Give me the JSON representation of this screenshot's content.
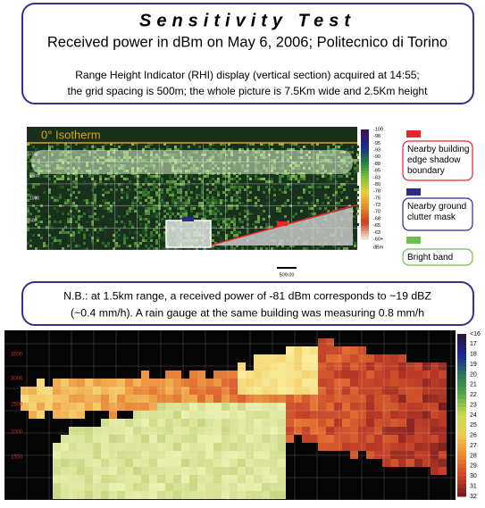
{
  "header": {
    "title": "Sensitivity Test",
    "subtitle": "Received power in dBm on May 6, 2006; Politecnico di Torino",
    "description": [
      "Range Height Indicator (RHI) display (vertical section) acquired at 14:55;",
      "the grid spacing is 500m; the whole picture is 7.5Km wide and 2.5Km height"
    ]
  },
  "rhi": {
    "isotherm": "0° Isotherm",
    "y_labels": [
      "2000",
      "1500",
      "1000",
      "500"
    ],
    "colorbar": [
      "-100",
      "-98",
      "-95",
      "-93",
      "-90",
      "-88",
      "-85",
      "-83",
      "-80",
      "-78",
      "-75",
      "-73",
      "-70",
      "-68",
      "-65",
      "-63",
      "-60+"
    ],
    "colorbar_unit": "dBm",
    "scale": "500.00"
  },
  "legend": [
    {
      "label": "Nearby building edge shadow boundary",
      "color": "#e8262b"
    },
    {
      "label": "Nearby ground clutter mask",
      "color": "#2e2a8c"
    },
    {
      "label": "Bright band",
      "color": "#6cc04a"
    }
  ],
  "note": [
    "N.B.: at 1.5km range, a received power of -81 dBm corresponds to ~19 dBZ",
    "(~0.4 mm/h). A rain gauge at the same building was measuring 0.8 mm/h"
  ],
  "reflectivity": {
    "y_labels": [
      "3500",
      "3000",
      "2500",
      "2000",
      "1500"
    ],
    "colorbar": [
      "<16",
      "17",
      "18",
      "19",
      "20",
      "21",
      "22",
      "23",
      "24",
      "25",
      "26",
      "27",
      "28",
      "29",
      "30",
      "31",
      "32"
    ]
  }
}
